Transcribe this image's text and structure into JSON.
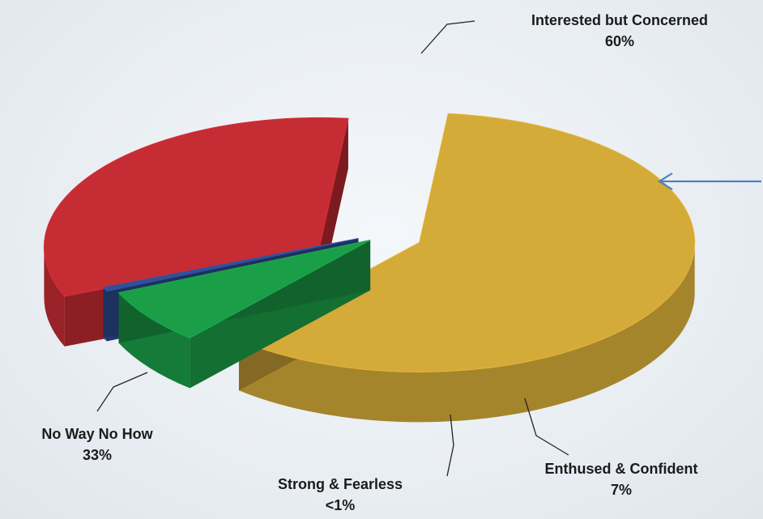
{
  "chart_data": {
    "type": "pie",
    "style": "3d-exploded",
    "slices": [
      {
        "name": "Interested but Concerned",
        "value": 60,
        "label": "60%",
        "color": "#d4aa38"
      },
      {
        "name": "Enthused & Confident",
        "value": 7,
        "label": "7%",
        "color": "#1b9e48"
      },
      {
        "name": "Strong & Fearless",
        "value": 0.5,
        "label": "<1%",
        "color": "#2f4f9a"
      },
      {
        "name": "No Way No How",
        "value": 33,
        "label": "33%",
        "color": "#c62c34"
      }
    ],
    "annotations": [
      {
        "type": "arrow",
        "target": "Interested but Concerned",
        "color": "#4f7fbf"
      }
    ]
  }
}
